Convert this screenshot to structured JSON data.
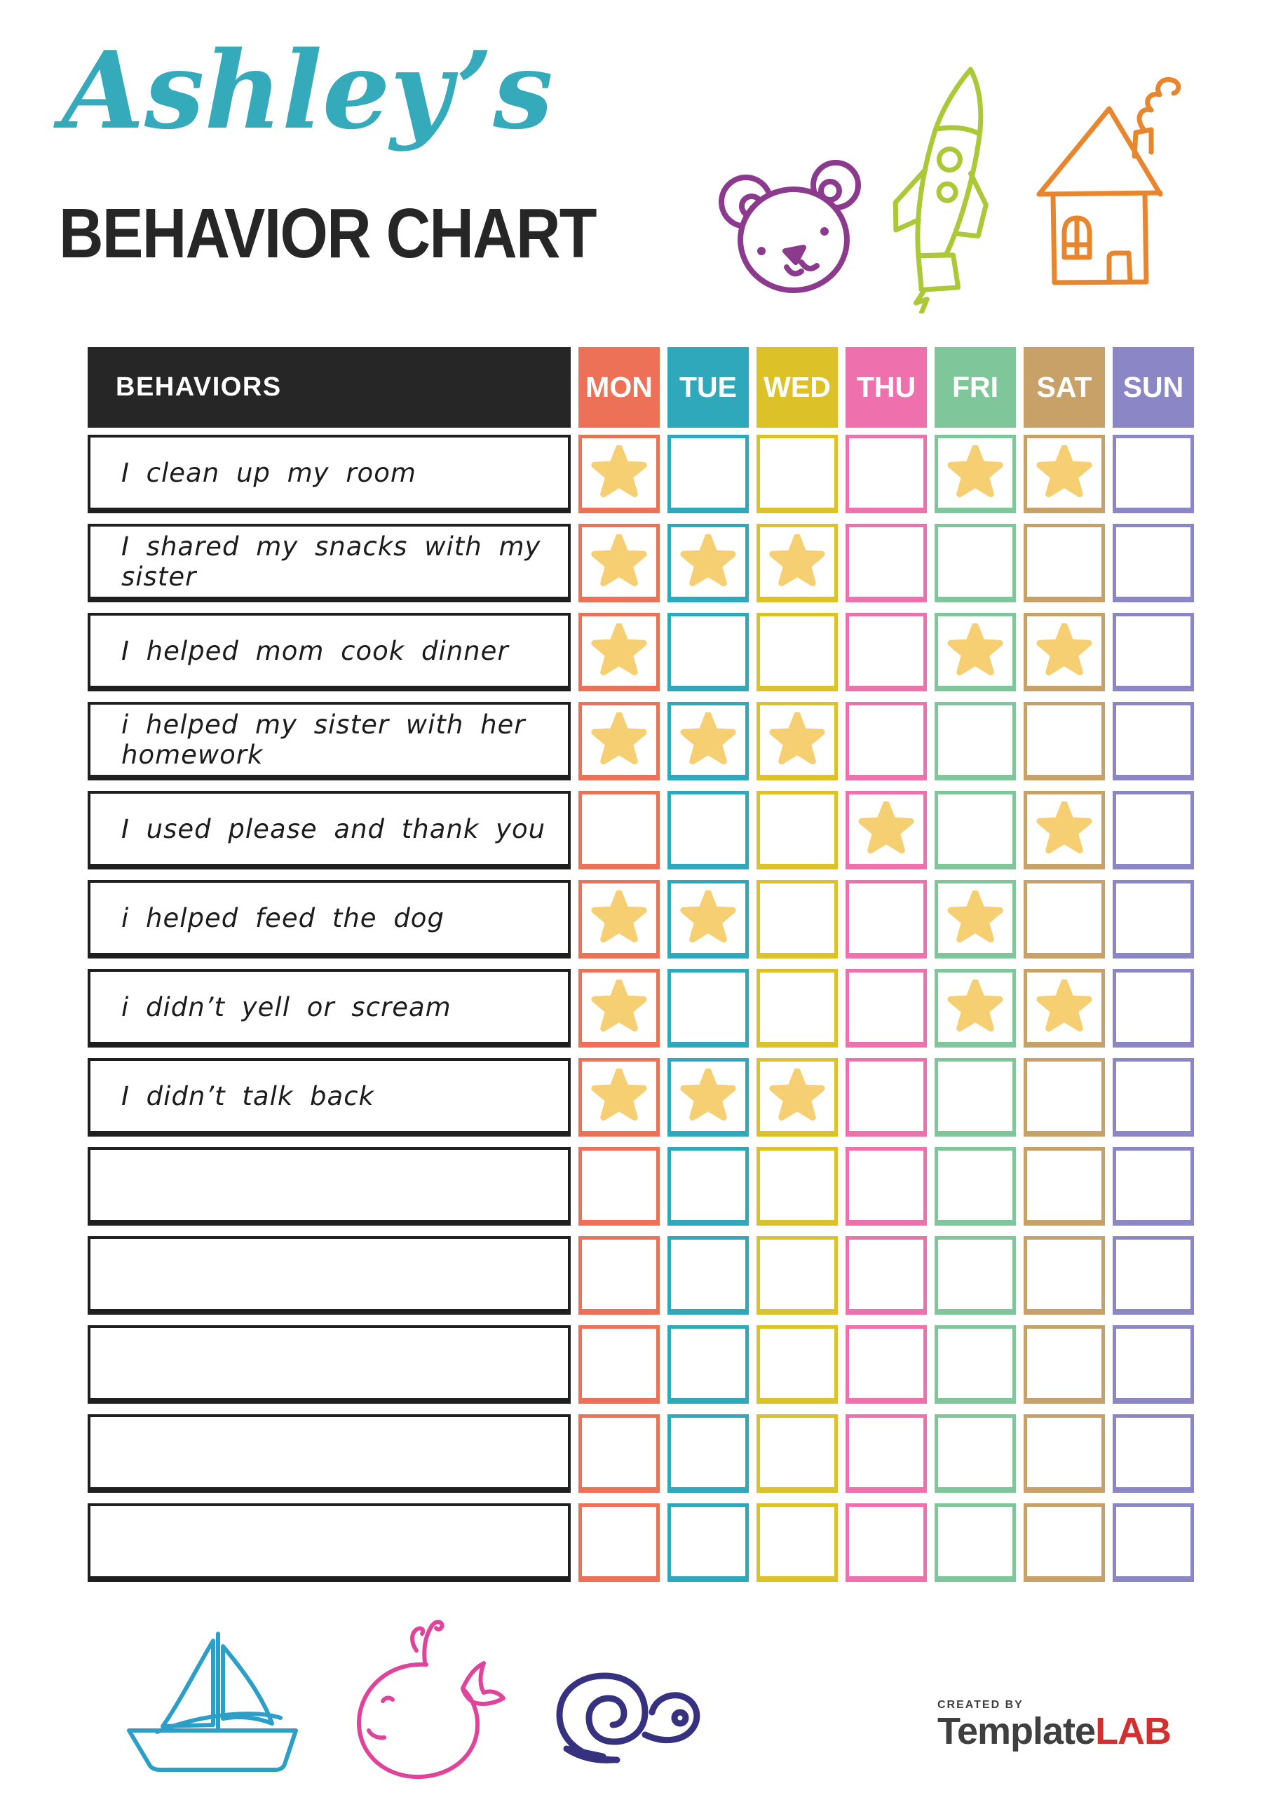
{
  "header": {
    "name_script": "Ashley’s",
    "title": "BEHAVIOR CHART"
  },
  "table": {
    "behaviors_header": "BEHAVIORS",
    "days": [
      {
        "label": "MON",
        "color": "#ED7156"
      },
      {
        "label": "TUE",
        "color": "#2FA8BC"
      },
      {
        "label": "WED",
        "color": "#DCC228"
      },
      {
        "label": "THU",
        "color": "#EE71AE"
      },
      {
        "label": "FRI",
        "color": "#7FC79B"
      },
      {
        "label": "SAT",
        "color": "#C7A167"
      },
      {
        "label": "SUN",
        "color": "#8B87C6"
      }
    ],
    "rows": [
      {
        "behavior": "I clean up my room",
        "stars": [
          1,
          0,
          0,
          0,
          1,
          1,
          0
        ]
      },
      {
        "behavior": "I shared my snacks with my sister",
        "stars": [
          1,
          1,
          1,
          0,
          0,
          0,
          0
        ]
      },
      {
        "behavior": "I helped mom cook dinner",
        "stars": [
          1,
          0,
          0,
          0,
          1,
          1,
          0
        ]
      },
      {
        "behavior": "i helped my sister with her homework",
        "stars": [
          1,
          1,
          1,
          0,
          0,
          0,
          0
        ]
      },
      {
        "behavior": "I used please and thank you",
        "stars": [
          0,
          0,
          0,
          1,
          0,
          1,
          0
        ]
      },
      {
        "behavior": "i helped feed the dog",
        "stars": [
          1,
          1,
          0,
          0,
          1,
          0,
          0
        ]
      },
      {
        "behavior": "i didn’t yell or scream",
        "stars": [
          1,
          0,
          0,
          0,
          1,
          1,
          0
        ]
      },
      {
        "behavior": "I didn’t talk back",
        "stars": [
          1,
          1,
          1,
          0,
          0,
          0,
          0
        ]
      },
      {
        "behavior": "",
        "stars": [
          0,
          0,
          0,
          0,
          0,
          0,
          0
        ]
      },
      {
        "behavior": "",
        "stars": [
          0,
          0,
          0,
          0,
          0,
          0,
          0
        ]
      },
      {
        "behavior": "",
        "stars": [
          0,
          0,
          0,
          0,
          0,
          0,
          0
        ]
      },
      {
        "behavior": "",
        "stars": [
          0,
          0,
          0,
          0,
          0,
          0,
          0
        ]
      },
      {
        "behavior": "",
        "stars": [
          0,
          0,
          0,
          0,
          0,
          0,
          0
        ]
      }
    ]
  },
  "decorations": {
    "top": [
      "teddy-bear",
      "rocket",
      "house"
    ],
    "bottom": [
      "sailboat",
      "whale",
      "snail"
    ]
  },
  "footer": {
    "created_by": "CREATED BY",
    "brand_dark": "Template",
    "brand_red": "LAB"
  },
  "theme": {
    "title_script_color": "#35AABB",
    "title_main_color": "#262626",
    "header_bg": "#262626",
    "header_text": "#FFFFFF",
    "row_border": "#1F1F1F",
    "star": "#F6CF73",
    "bear": "#8B3A8E",
    "rocket": "#ABC837",
    "house": "#E8862E",
    "boat": "#2B9FC8",
    "whale": "#E0439A",
    "snail": "#37327F",
    "brand_dark": "#3F3F3F",
    "brand_red": "#D42F2F"
  }
}
